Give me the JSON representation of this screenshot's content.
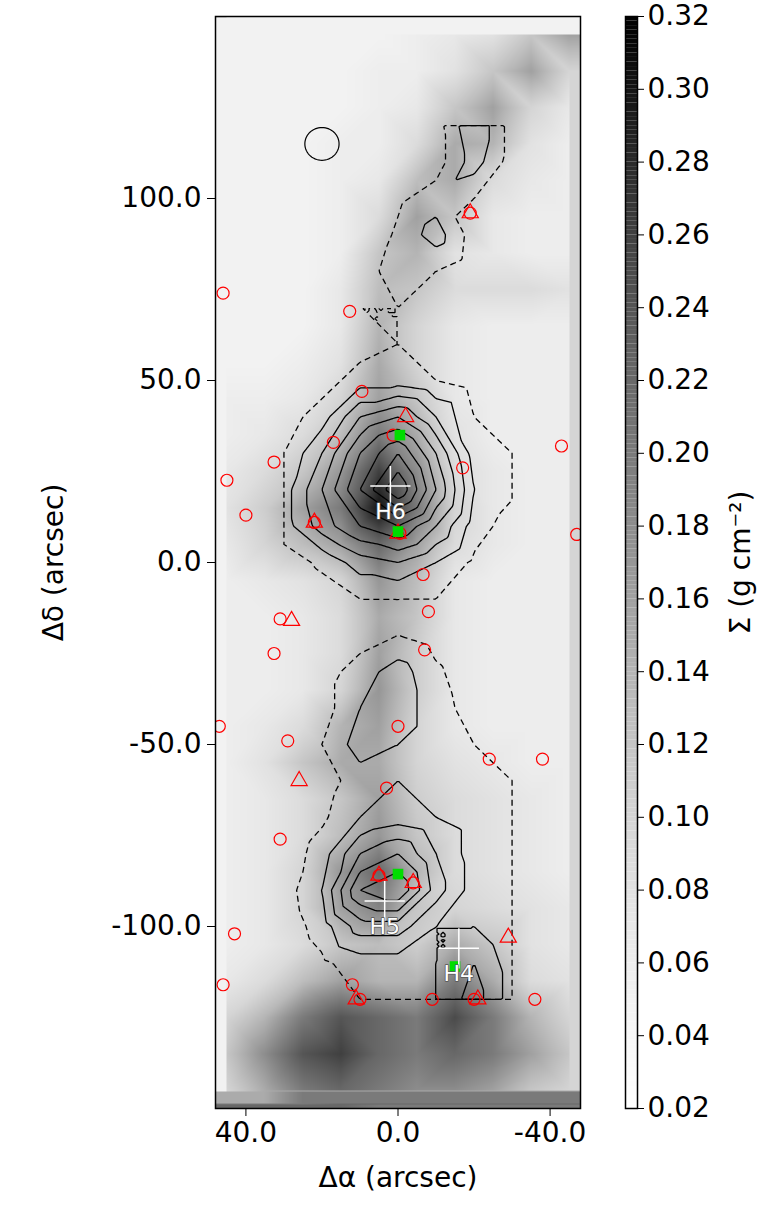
{
  "chart_data": {
    "type": "heatmap",
    "xlabel": "Δα (arcsec)",
    "ylabel": "Δδ (arcsec)",
    "xlim": [
      48,
      -48
    ],
    "ylim": [
      -150,
      150
    ],
    "xticks": [
      {
        "value": 40,
        "label": "40.0"
      },
      {
        "value": 0,
        "label": "0.0"
      },
      {
        "value": -40,
        "label": "-40.0"
      }
    ],
    "yticks": [
      {
        "value": -100,
        "label": "-100.0"
      },
      {
        "value": -50,
        "label": "-50.0"
      },
      {
        "value": 0,
        "label": "0.0"
      },
      {
        "value": 50,
        "label": "50.0"
      },
      {
        "value": 100,
        "label": "100.0"
      }
    ],
    "heatmap": {
      "x": [
        45,
        35,
        25,
        15,
        5,
        -5,
        -15,
        -25,
        -35,
        -45
      ],
      "y": [
        145,
        135,
        125,
        115,
        105,
        95,
        85,
        75,
        65,
        55,
        45,
        35,
        25,
        15,
        5,
        -5,
        -15,
        -25,
        -35,
        -45,
        -55,
        -65,
        -75,
        -85,
        -95,
        -105,
        -115,
        -125,
        -135,
        -145
      ],
      "values": [
        [
          0.05,
          0.05,
          0.05,
          0.05,
          0.05,
          0.06,
          0.07,
          0.08,
          0.12,
          0.16
        ],
        [
          0.05,
          0.05,
          0.05,
          0.05,
          0.06,
          0.06,
          0.08,
          0.12,
          0.16,
          0.1
        ],
        [
          0.05,
          0.05,
          0.05,
          0.05,
          0.06,
          0.07,
          0.12,
          0.16,
          0.1,
          0.07
        ],
        [
          0.05,
          0.05,
          0.05,
          0.06,
          0.06,
          0.09,
          0.15,
          0.14,
          0.08,
          0.06
        ],
        [
          0.05,
          0.05,
          0.05,
          0.06,
          0.07,
          0.13,
          0.15,
          0.09,
          0.07,
          0.06
        ],
        [
          0.05,
          0.05,
          0.05,
          0.06,
          0.09,
          0.16,
          0.12,
          0.07,
          0.06,
          0.06
        ],
        [
          0.05,
          0.05,
          0.05,
          0.06,
          0.12,
          0.14,
          0.08,
          0.07,
          0.06,
          0.06
        ],
        [
          0.05,
          0.05,
          0.05,
          0.07,
          0.13,
          0.12,
          0.09,
          0.09,
          0.09,
          0.08
        ],
        [
          0.05,
          0.05,
          0.05,
          0.07,
          0.14,
          0.1,
          0.07,
          0.06,
          0.06,
          0.06
        ],
        [
          0.05,
          0.05,
          0.06,
          0.08,
          0.15,
          0.1,
          0.07,
          0.06,
          0.06,
          0.06
        ],
        [
          0.06,
          0.06,
          0.07,
          0.1,
          0.16,
          0.12,
          0.07,
          0.06,
          0.06,
          0.06
        ],
        [
          0.06,
          0.07,
          0.09,
          0.13,
          0.2,
          0.15,
          0.08,
          0.06,
          0.06,
          0.06
        ],
        [
          0.07,
          0.09,
          0.12,
          0.17,
          0.26,
          0.18,
          0.09,
          0.07,
          0.06,
          0.06
        ],
        [
          0.08,
          0.11,
          0.16,
          0.2,
          0.3,
          0.2,
          0.1,
          0.07,
          0.06,
          0.06
        ],
        [
          0.07,
          0.1,
          0.13,
          0.16,
          0.22,
          0.16,
          0.09,
          0.07,
          0.06,
          0.06
        ],
        [
          0.06,
          0.07,
          0.08,
          0.1,
          0.17,
          0.13,
          0.07,
          0.06,
          0.06,
          0.06
        ],
        [
          0.06,
          0.06,
          0.07,
          0.09,
          0.15,
          0.12,
          0.07,
          0.06,
          0.06,
          0.06
        ],
        [
          0.06,
          0.06,
          0.07,
          0.09,
          0.16,
          0.11,
          0.07,
          0.06,
          0.06,
          0.06
        ],
        [
          0.06,
          0.06,
          0.07,
          0.1,
          0.17,
          0.11,
          0.07,
          0.06,
          0.06,
          0.06
        ],
        [
          0.06,
          0.07,
          0.09,
          0.14,
          0.16,
          0.1,
          0.07,
          0.06,
          0.06,
          0.06
        ],
        [
          0.06,
          0.08,
          0.12,
          0.15,
          0.15,
          0.1,
          0.08,
          0.07,
          0.06,
          0.06
        ],
        [
          0.06,
          0.07,
          0.09,
          0.12,
          0.16,
          0.11,
          0.09,
          0.08,
          0.07,
          0.06
        ],
        [
          0.06,
          0.07,
          0.09,
          0.13,
          0.17,
          0.12,
          0.09,
          0.08,
          0.07,
          0.06
        ],
        [
          0.06,
          0.07,
          0.1,
          0.17,
          0.22,
          0.14,
          0.09,
          0.08,
          0.07,
          0.06
        ],
        [
          0.06,
          0.07,
          0.1,
          0.16,
          0.19,
          0.12,
          0.1,
          0.09,
          0.08,
          0.07
        ],
        [
          0.06,
          0.07,
          0.09,
          0.12,
          0.13,
          0.11,
          0.15,
          0.12,
          0.08,
          0.07
        ],
        [
          0.07,
          0.09,
          0.13,
          0.16,
          0.14,
          0.14,
          0.2,
          0.15,
          0.09,
          0.08
        ],
        [
          0.1,
          0.14,
          0.2,
          0.24,
          0.22,
          0.2,
          0.25,
          0.2,
          0.14,
          0.1
        ],
        [
          0.12,
          0.18,
          0.24,
          0.26,
          0.22,
          0.2,
          0.22,
          0.2,
          0.16,
          0.12
        ],
        [
          0.1,
          0.15,
          0.2,
          0.22,
          0.2,
          0.18,
          0.18,
          0.16,
          0.12,
          0.1
        ]
      ]
    },
    "colorbar": {
      "label": "Σ (g cm⁻²)",
      "range": [
        0.02,
        0.32
      ],
      "ticks": [
        0.02,
        0.04,
        0.06,
        0.08,
        {
          "value": 0.1,
          "label": "0.10"
        },
        0.12,
        0.14,
        0.16,
        0.18,
        {
          "value": 0.2,
          "label": "0.20"
        },
        0.22,
        0.24,
        0.26,
        0.28,
        {
          "value": 0.3,
          "label": "0.30"
        },
        0.32
      ]
    },
    "contours": {
      "x": [
        30,
        20,
        10,
        0,
        -10,
        -20,
        -30
      ],
      "y": [
        120,
        110,
        100,
        90,
        80,
        70,
        60,
        50,
        40,
        30,
        20,
        10,
        0,
        -10,
        -20,
        -30,
        -40,
        -50,
        -60,
        -70,
        -80,
        -90,
        -100,
        -110,
        -120
      ],
      "values": [
        [
          0,
          0,
          0,
          0,
          0.5,
          3,
          0.5
        ],
        [
          0,
          0,
          0,
          0,
          0.5,
          2.5,
          0.5
        ],
        [
          0,
          0,
          0,
          0.8,
          1.5,
          1,
          0
        ],
        [
          0,
          0,
          0,
          1.2,
          2.5,
          0.5,
          0
        ],
        [
          0,
          0,
          0.5,
          1.5,
          1,
          0.3,
          0
        ],
        [
          0,
          0,
          1,
          1,
          0.5,
          0,
          0
        ],
        [
          0,
          0,
          0.5,
          1,
          0.5,
          0,
          0
        ],
        [
          0,
          0.5,
          1.5,
          1.5,
          1,
          0.5,
          0
        ],
        [
          0.5,
          1.5,
          4,
          5,
          3,
          1,
          0.5
        ],
        [
          1,
          3,
          6,
          8,
          5,
          1.5,
          1
        ],
        [
          1.5,
          4,
          7,
          10,
          6,
          2,
          1.2
        ],
        [
          1.5,
          3.5,
          5,
          6,
          4,
          1.5,
          0.5
        ],
        [
          0.5,
          1.2,
          2.5,
          3,
          2,
          0.8,
          0
        ],
        [
          0,
          0.5,
          1,
          1,
          1,
          0.3,
          0
        ],
        [
          0,
          0.8,
          0.5,
          1,
          0.5,
          0,
          0
        ],
        [
          0,
          0.5,
          1.5,
          2.5,
          1.2,
          0.3,
          0
        ],
        [
          0,
          0.5,
          2,
          2.5,
          1.5,
          0.5,
          0
        ],
        [
          0,
          1,
          2.5,
          2,
          1.5,
          1,
          0.5
        ],
        [
          0,
          0.5,
          1.5,
          2,
          1.5,
          1.5,
          1
        ],
        [
          0,
          0.8,
          2,
          2.5,
          2,
          1.5,
          1
        ],
        [
          0.3,
          1.5,
          4,
          5,
          3,
          1.5,
          1
        ],
        [
          0.5,
          2,
          6,
          7,
          3.5,
          1.5,
          1
        ],
        [
          0.3,
          1.5,
          3.5,
          3.5,
          2,
          2,
          1
        ],
        [
          0,
          0.8,
          1.5,
          1.5,
          2,
          3,
          1.5
        ],
        [
          0,
          0.5,
          1,
          1,
          2,
          3.5,
          1.5
        ]
      ],
      "levels": [
        1,
        2,
        3,
        4,
        5,
        6,
        7,
        8,
        9
      ]
    },
    "beam": {
      "x": 20,
      "y": 115,
      "diameter": 9
    },
    "series": [
      {
        "type": "scatter",
        "marker": "circle",
        "color": "#ff0000",
        "x": [
          46,
          12.7,
          9.5,
          17,
          32.6,
          45,
          40,
          22,
          1.3,
          -0.5,
          -6.6,
          -8,
          -7,
          -17,
          -43,
          -47,
          31,
          32.6,
          29,
          47,
          31,
          0,
          3,
          -24,
          -38,
          5,
          -4,
          43,
          46,
          12,
          10,
          -9,
          -20,
          -36,
          -19
        ],
        "y": [
          74,
          69,
          47,
          33,
          27.6,
          22.6,
          13,
          11,
          35,
          8,
          -3.3,
          -13.5,
          -24,
          26,
          32,
          7.7,
          -15.5,
          -25,
          -49,
          -45,
          -76,
          -45,
          -62,
          -54,
          -54,
          -86,
          -88,
          -102,
          -116,
          -116,
          -120,
          -120,
          -120,
          -120,
          96
        ]
      },
      {
        "type": "scatter",
        "marker": "triangle",
        "color": "#ff0000",
        "x": [
          -19,
          -2,
          22,
          0,
          28,
          26,
          5,
          -4,
          -29,
          11,
          -21
        ],
        "y": [
          96,
          40,
          11,
          8,
          -16,
          -60,
          -86,
          -88,
          -103,
          -120,
          -120
        ]
      },
      {
        "type": "scatter",
        "marker": "square",
        "color": "#00dd00",
        "x": [
          -0.5,
          0,
          0,
          -15
        ],
        "y": [
          35,
          8.5,
          -85.6,
          -111
        ]
      },
      {
        "type": "scatter",
        "marker": "plus",
        "color": "#ffffff",
        "x": [
          -16,
          3.5,
          2
        ],
        "y": [
          -106,
          -93,
          21
        ],
        "labels": [
          "H4",
          "H5",
          "H6"
        ]
      }
    ]
  }
}
